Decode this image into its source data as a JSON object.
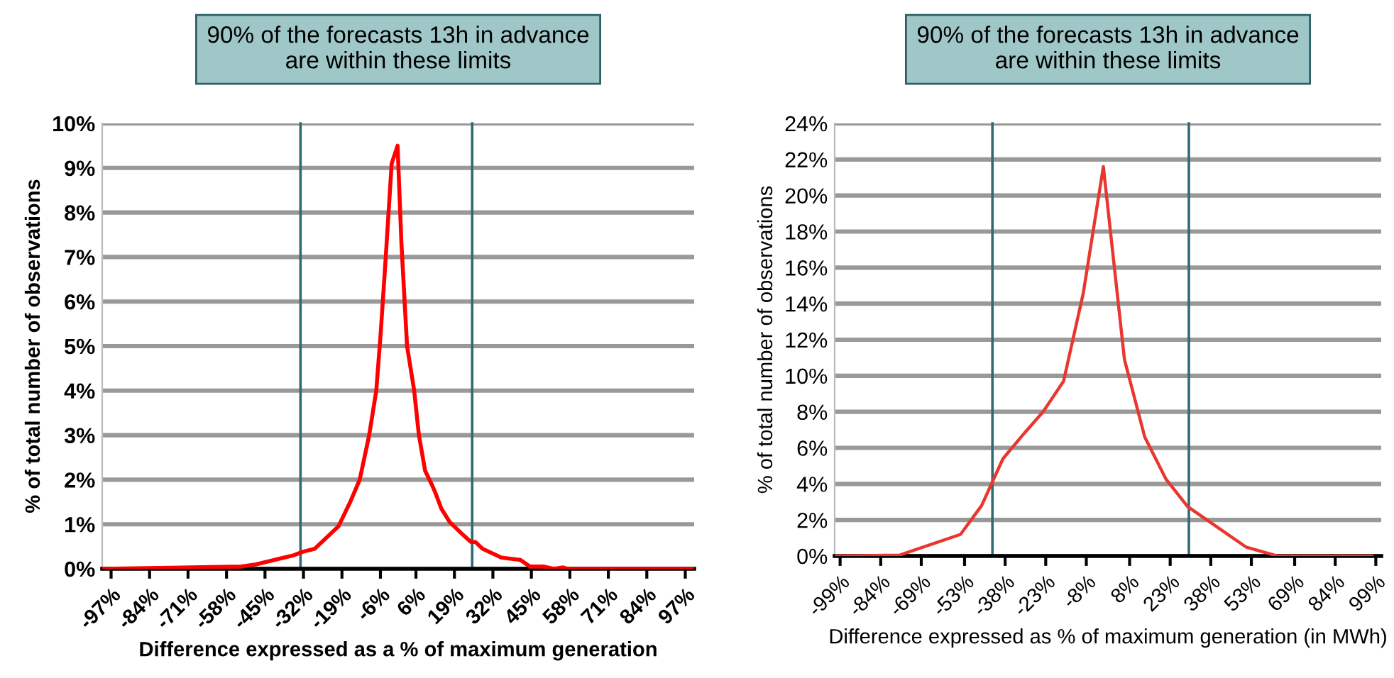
{
  "chart_data": [
    {
      "type": "line",
      "title": "90% of the forecasts 13h in advance\nare within these limits",
      "xlabel": "Difference expressed as a % of maximum generation",
      "ylabel": "% of total number of observations",
      "x": [
        -100,
        -63.4,
        -53,
        -48,
        -38.6,
        -35.4,
        -32.3,
        -28.2,
        -24.2,
        -20.2,
        -16.2,
        -13,
        -9.8,
        -7.4,
        -5.9,
        -4.2,
        -2.2,
        -0.2,
        1.1,
        3.0,
        5.4,
        7.0,
        9.1,
        11.3,
        12.6,
        14.6,
        17.4,
        21.3,
        24.6,
        26.1,
        28.5,
        34.9,
        41.3,
        44.5,
        49.3,
        52.5,
        55.7,
        57.3,
        99.5
      ],
      "series": [
        {
          "color": "#ff0000",
          "values": [
            0,
            0.04,
            0.05,
            0.1,
            0.25,
            0.3,
            0.38,
            0.45,
            0.7,
            0.95,
            1.5,
            2.0,
            3.0,
            4.0,
            5.3,
            7.0,
            9.1,
            9.5,
            7.3,
            5.0,
            4.0,
            3.0,
            2.2,
            1.9,
            1.7,
            1.35,
            1.05,
            0.8,
            0.6,
            0.6,
            0.45,
            0.25,
            0.2,
            0.05,
            0.05,
            0,
            0.03,
            0,
            0
          ]
        }
      ],
      "xlim": [
        -100,
        100
      ],
      "xticks": [
        {
          "value": -97,
          "label": "-97%"
        },
        {
          "value": -84,
          "label": "-84%"
        },
        {
          "value": -71,
          "label": "-71%"
        },
        {
          "value": -58,
          "label": "-58%"
        },
        {
          "value": -45,
          "label": "-45%"
        },
        {
          "value": -32,
          "label": "-32%"
        },
        {
          "value": -19,
          "label": "-19%"
        },
        {
          "value": -6,
          "label": "-6%"
        },
        {
          "value": 6,
          "label": "6%"
        },
        {
          "value": 19,
          "label": "19%"
        },
        {
          "value": 32,
          "label": "32%"
        },
        {
          "value": 45,
          "label": "45%"
        },
        {
          "value": 58,
          "label": "58%"
        },
        {
          "value": 71,
          "label": "71%"
        },
        {
          "value": 84,
          "label": "84%"
        },
        {
          "value": 97,
          "label": "97%"
        }
      ],
      "ylim": [
        0,
        10
      ],
      "yticks": [
        {
          "value": 0,
          "label": "0%"
        },
        {
          "value": 1,
          "label": "1%"
        },
        {
          "value": 2,
          "label": "2%"
        },
        {
          "value": 3,
          "label": "3%"
        },
        {
          "value": 4,
          "label": "4%"
        },
        {
          "value": 5,
          "label": "5%"
        },
        {
          "value": 6,
          "label": "6%"
        },
        {
          "value": 7,
          "label": "7%"
        },
        {
          "value": 8,
          "label": "8%"
        },
        {
          "value": 9,
          "label": "9%"
        },
        {
          "value": 10,
          "label": "10%"
        }
      ],
      "ref_lines": [
        {
          "axis": "x",
          "value": -33,
          "color": "#2f6b73"
        },
        {
          "axis": "x",
          "value": 25,
          "color": "#2f6b73"
        }
      ],
      "grid": "y",
      "marker": "none",
      "line_style": "solid"
    },
    {
      "type": "line",
      "title": "90% of the forecasts 13h in advance\nare within these limits",
      "xlabel": "Difference expressed as % of maximum generation (in MWh)",
      "ylabel": "% of total number of observations",
      "x": [
        -100.9,
        -77,
        -54.5,
        -46.7,
        -38.8,
        -31,
        -24,
        -16.4,
        -9.1,
        -1.7,
        6.1,
        13.6,
        21.5,
        29.4,
        51,
        62.6,
        97.6
      ],
      "series": [
        {
          "color": "#e8372f",
          "values": [
            0,
            0.05,
            1.2,
            2.8,
            5.4,
            6.8,
            8.0,
            9.7,
            14.6,
            21.6,
            10.9,
            6.6,
            4.25,
            2.75,
            0.5,
            0,
            0
          ]
        }
      ],
      "xlim": [
        -101,
        101
      ],
      "xticks": [
        {
          "value": -99,
          "label": "-99%"
        },
        {
          "value": -84,
          "label": "-84%"
        },
        {
          "value": -69,
          "label": "-69%"
        },
        {
          "value": -53,
          "label": "-53%"
        },
        {
          "value": -38,
          "label": "-38%"
        },
        {
          "value": -23,
          "label": "-23%"
        },
        {
          "value": -8,
          "label": "-8%"
        },
        {
          "value": 8,
          "label": "8%"
        },
        {
          "value": 23,
          "label": "23%"
        },
        {
          "value": 38,
          "label": "38%"
        },
        {
          "value": 53,
          "label": "53%"
        },
        {
          "value": 69,
          "label": "69%"
        },
        {
          "value": 84,
          "label": "84%"
        },
        {
          "value": 99,
          "label": "99%"
        }
      ],
      "ylim": [
        0,
        24
      ],
      "yticks": [
        {
          "value": 0,
          "label": "0%"
        },
        {
          "value": 2,
          "label": "2%"
        },
        {
          "value": 4,
          "label": "4%"
        },
        {
          "value": 6,
          "label": "6%"
        },
        {
          "value": 8,
          "label": "8%"
        },
        {
          "value": 10,
          "label": "10%"
        },
        {
          "value": 12,
          "label": "12%"
        },
        {
          "value": 14,
          "label": "14%"
        },
        {
          "value": 16,
          "label": "16%"
        },
        {
          "value": 18,
          "label": "18%"
        },
        {
          "value": 20,
          "label": "20%"
        },
        {
          "value": 22,
          "label": "22%"
        },
        {
          "value": 24,
          "label": "24%"
        }
      ],
      "ref_lines": [
        {
          "axis": "x",
          "value": -42.7,
          "color": "#2f6b73"
        },
        {
          "axis": "x",
          "value": 29.9,
          "color": "#2f6b73"
        }
      ],
      "grid": "y",
      "marker": "none",
      "line_style": "solid"
    }
  ]
}
